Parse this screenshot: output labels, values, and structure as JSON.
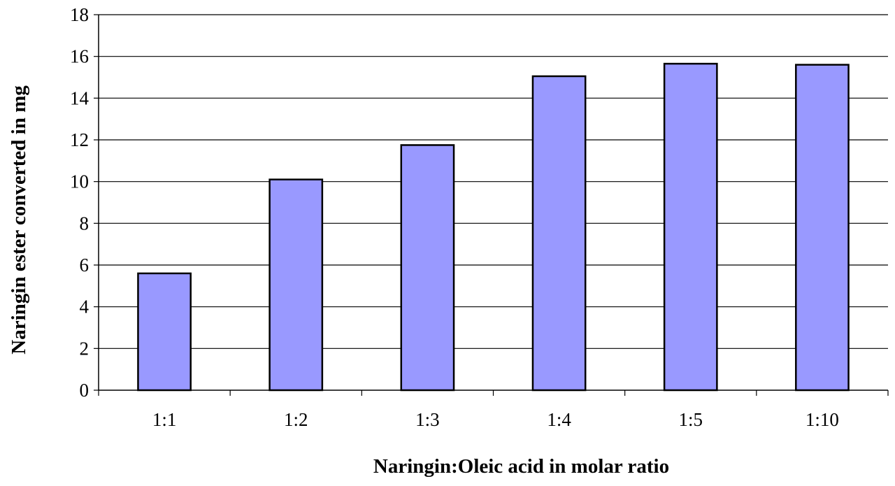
{
  "chart_data": {
    "type": "bar",
    "title": "",
    "xlabel": "Naringin:Oleic acid in molar ratio",
    "ylabel": "Naringin ester converted in mg",
    "categories": [
      "1:1",
      "1:2",
      "1:3",
      "1:4",
      "1:5",
      "1:10"
    ],
    "series": [
      {
        "values": [
          5.6,
          10.1,
          11.75,
          15.05,
          15.65,
          15.6
        ]
      }
    ],
    "ylim": [
      0,
      18
    ],
    "yticks": [
      0,
      2,
      4,
      6,
      8,
      10,
      12,
      14,
      16,
      18
    ],
    "grid": true,
    "legend": "none",
    "bar_color": "#9999ff",
    "bar_edge_color": "#000000"
  }
}
